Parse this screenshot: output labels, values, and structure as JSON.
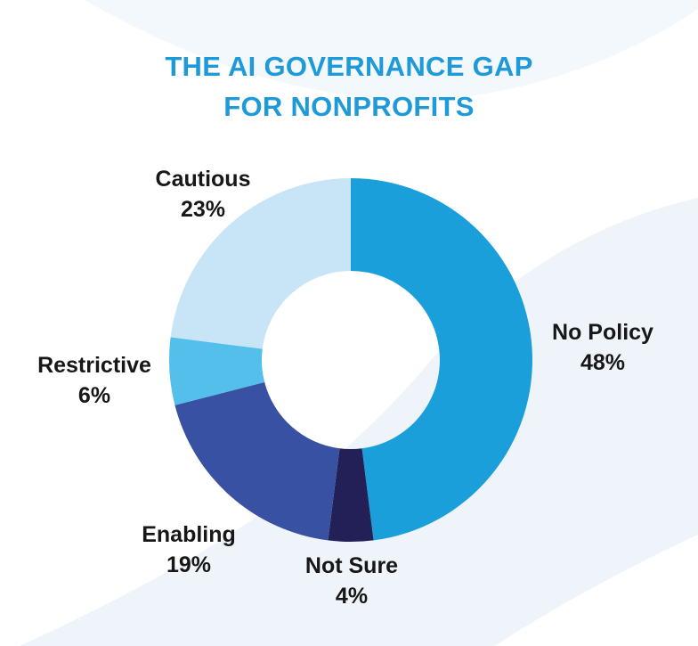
{
  "title": {
    "line1": "THE AI GOVERNANCE GAP",
    "line2": "FOR NONPROFITS"
  },
  "colors": {
    "title_text": "#1F9AD8",
    "label_text": "#171717",
    "bg_base": "#FFFFFF",
    "bg_tint_top": "#F3F8FC",
    "bg_tint_main": "#EFF4FA",
    "bg_cut_white": "#FFFFFF"
  },
  "chart_data": {
    "type": "pie",
    "subtype": "donut",
    "title": "THE AI GOVERNANCE GAP FOR NONPROFITS",
    "donut_hole_ratio": 0.49,
    "start_angle_deg": 0,
    "direction": "clockwise",
    "order_clockwise_from_top": [
      "No Policy",
      "Not Sure",
      "Enabling",
      "Restrictive",
      "Cautious"
    ],
    "segments": [
      {
        "label": "No Policy",
        "value_pct": 48,
        "display": "48%",
        "color": "#1B9FDA"
      },
      {
        "label": "Not Sure",
        "value_pct": 4,
        "display": "4%",
        "color": "#222057"
      },
      {
        "label": "Enabling",
        "value_pct": 19,
        "display": "19%",
        "color": "#3951A3"
      },
      {
        "label": "Restrictive",
        "value_pct": 6,
        "display": "6%",
        "color": "#54BFEB"
      },
      {
        "label": "Cautious",
        "value_pct": 23,
        "display": "23%",
        "color": "#C7E5F7"
      }
    ],
    "legend": "none",
    "labels_position": "outside"
  }
}
